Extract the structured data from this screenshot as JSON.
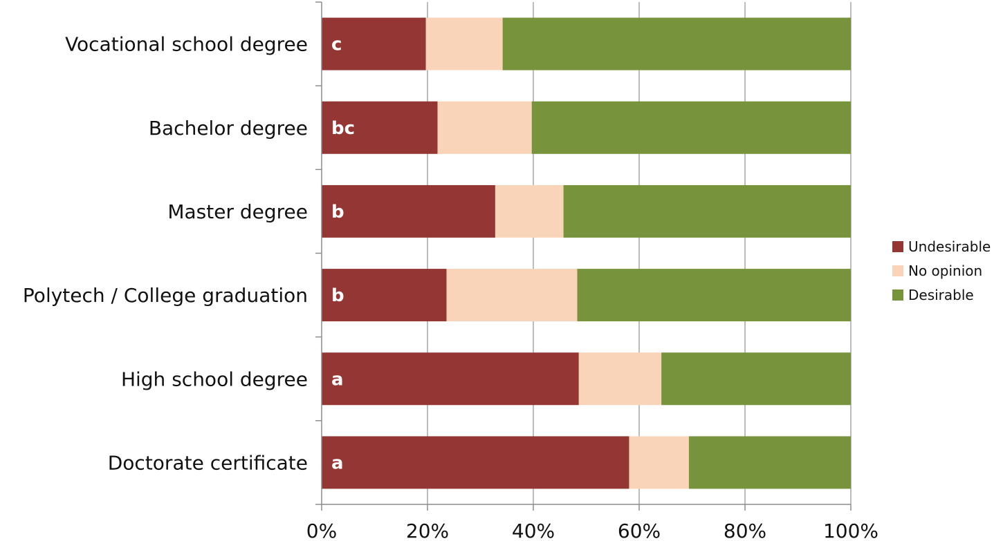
{
  "chart_data": {
    "type": "bar",
    "orientation": "horizontal",
    "stacked": "percent",
    "categories": [
      "Vocational school degree",
      "Bachelor degree",
      "Master degree",
      "Polytech / College graduation",
      "High school degree",
      "Doctorate certificate"
    ],
    "annotations": [
      "c",
      "bc",
      "b",
      "b",
      "a",
      "a"
    ],
    "series": [
      {
        "name": "Undesirable",
        "color": "#943634",
        "values": [
          19.7,
          21.9,
          32.8,
          23.6,
          48.6,
          58.1
        ]
      },
      {
        "name": "No opinion",
        "color": "#fad4b8",
        "values": [
          14.5,
          17.8,
          12.9,
          24.7,
          15.6,
          11.3
        ]
      },
      {
        "name": "Desirable",
        "color": "#77933c",
        "values": [
          65.8,
          60.3,
          54.3,
          51.7,
          35.8,
          30.6
        ]
      }
    ],
    "xlim": [
      0,
      100
    ],
    "xticks": [
      0,
      20,
      40,
      60,
      80,
      100
    ],
    "xtick_labels": [
      "0%",
      "20%",
      "40%",
      "60%",
      "80%",
      "100%"
    ],
    "grid": "vertical",
    "legend_position": "right"
  }
}
